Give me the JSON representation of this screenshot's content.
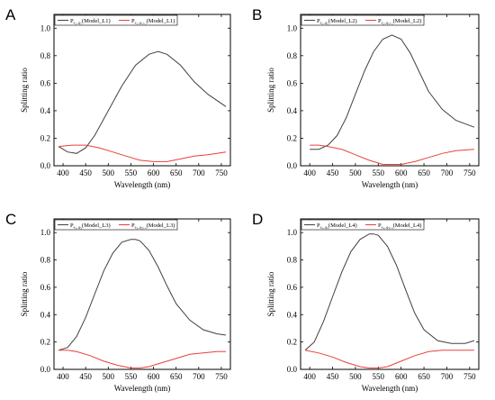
{
  "chart_data": [
    {
      "type": "line",
      "panel": "A",
      "xlabel": "Wavelength (nm)",
      "ylabel": "Splitting ratio",
      "xlim": [
        380,
        770
      ],
      "ylim": [
        0,
        1.1
      ],
      "xticks": [
        400,
        450,
        500,
        550,
        600,
        650,
        700,
        750
      ],
      "yticks": [
        0.0,
        0.2,
        0.4,
        0.6,
        0.8,
        1.0
      ],
      "legend_position": "top",
      "series": [
        {
          "name_main": "P",
          "name_sub": "e₁_φ₁",
          "name_model": "(Model_L1)",
          "color": "#404040",
          "x": [
            390,
            410,
            430,
            450,
            470,
            500,
            530,
            560,
            590,
            610,
            630,
            660,
            690,
            720,
            760
          ],
          "y": [
            0.14,
            0.1,
            0.09,
            0.13,
            0.22,
            0.4,
            0.58,
            0.73,
            0.81,
            0.83,
            0.81,
            0.73,
            0.61,
            0.52,
            0.43
          ]
        },
        {
          "name_main": "P",
          "name_sub": "e₁_φ₁₊₂",
          "name_model": "(Model_L1)",
          "color": "#e8403a",
          "x": [
            390,
            420,
            450,
            480,
            510,
            540,
            570,
            600,
            630,
            660,
            690,
            720,
            760
          ],
          "y": [
            0.14,
            0.15,
            0.15,
            0.13,
            0.1,
            0.07,
            0.04,
            0.03,
            0.03,
            0.05,
            0.07,
            0.08,
            0.1
          ]
        }
      ]
    },
    {
      "type": "line",
      "panel": "B",
      "xlabel": "Wavelength (nm)",
      "ylabel": "Splitting ratio",
      "xlim": [
        380,
        770
      ],
      "ylim": [
        0,
        1.1
      ],
      "xticks": [
        400,
        450,
        500,
        550,
        600,
        650,
        700,
        750
      ],
      "yticks": [
        0.0,
        0.2,
        0.4,
        0.6,
        0.8,
        1.0
      ],
      "legend_position": "top",
      "series": [
        {
          "name_main": "P",
          "name_sub": "e₂_φ₂",
          "name_model": "(Model_L2)",
          "color": "#404040",
          "x": [
            400,
            420,
            440,
            460,
            480,
            500,
            520,
            540,
            560,
            580,
            600,
            620,
            640,
            660,
            690,
            720,
            760
          ],
          "y": [
            0.12,
            0.12,
            0.15,
            0.22,
            0.35,
            0.52,
            0.69,
            0.83,
            0.92,
            0.95,
            0.92,
            0.82,
            0.68,
            0.54,
            0.41,
            0.33,
            0.28
          ]
        },
        {
          "name_main": "P",
          "name_sub": "e₂_φ₁₊₂",
          "name_model": "(Model_L2)",
          "color": "#e8403a",
          "x": [
            400,
            420,
            440,
            470,
            500,
            530,
            560,
            580,
            600,
            630,
            660,
            690,
            720,
            760
          ],
          "y": [
            0.15,
            0.15,
            0.14,
            0.12,
            0.08,
            0.04,
            0.01,
            0.01,
            0.01,
            0.03,
            0.06,
            0.09,
            0.11,
            0.12
          ]
        }
      ]
    },
    {
      "type": "line",
      "panel": "C",
      "xlabel": "Wavelength (nm)",
      "ylabel": "Splitting ratio",
      "xlim": [
        380,
        770
      ],
      "ylim": [
        0,
        1.1
      ],
      "xticks": [
        400,
        450,
        500,
        550,
        600,
        650,
        700,
        750
      ],
      "yticks": [
        0.0,
        0.2,
        0.4,
        0.6,
        0.8,
        1.0
      ],
      "legend_position": "top",
      "series": [
        {
          "name_main": "P",
          "name_sub": "e₃_φ₃",
          "name_model": "(Model_L3)",
          "color": "#404040",
          "x": [
            390,
            410,
            430,
            450,
            470,
            490,
            510,
            530,
            550,
            560,
            570,
            590,
            610,
            630,
            650,
            680,
            710,
            740,
            760
          ],
          "y": [
            0.14,
            0.16,
            0.24,
            0.38,
            0.55,
            0.72,
            0.85,
            0.93,
            0.95,
            0.95,
            0.94,
            0.87,
            0.75,
            0.61,
            0.48,
            0.36,
            0.29,
            0.26,
            0.25
          ]
        },
        {
          "name_main": "P",
          "name_sub": "e₃_φ₃₊₄",
          "name_model": "(Model_L3)",
          "color": "#e8403a",
          "x": [
            390,
            410,
            430,
            460,
            490,
            520,
            550,
            570,
            590,
            620,
            650,
            680,
            710,
            740,
            760
          ],
          "y": [
            0.14,
            0.14,
            0.13,
            0.1,
            0.06,
            0.03,
            0.01,
            0.01,
            0.02,
            0.05,
            0.08,
            0.11,
            0.12,
            0.13,
            0.13
          ]
        }
      ]
    },
    {
      "type": "line",
      "panel": "D",
      "xlabel": "Wavelength (nm)",
      "ylabel": "Splitting ratio",
      "xlim": [
        380,
        770
      ],
      "ylim": [
        0,
        1.1
      ],
      "xticks": [
        400,
        450,
        500,
        550,
        600,
        650,
        700,
        750
      ],
      "yticks": [
        0.0,
        0.2,
        0.4,
        0.6,
        0.8,
        1.0
      ],
      "legend_position": "top",
      "series": [
        {
          "name_main": "P",
          "name_sub": "e₄_φ₄",
          "name_model": "(Model_L4)",
          "color": "#404040",
          "x": [
            390,
            410,
            430,
            450,
            470,
            490,
            510,
            530,
            540,
            550,
            570,
            590,
            610,
            630,
            650,
            680,
            710,
            740,
            760
          ],
          "y": [
            0.14,
            0.2,
            0.35,
            0.53,
            0.71,
            0.86,
            0.95,
            0.99,
            0.99,
            0.98,
            0.9,
            0.76,
            0.58,
            0.41,
            0.29,
            0.21,
            0.19,
            0.19,
            0.21
          ]
        },
        {
          "name_main": "P",
          "name_sub": "e₄_φ₃₊₄",
          "name_model": "(Model_L4)",
          "color": "#e8403a",
          "x": [
            390,
            420,
            450,
            480,
            510,
            530,
            550,
            570,
            600,
            630,
            660,
            690,
            720,
            760
          ],
          "y": [
            0.14,
            0.12,
            0.09,
            0.05,
            0.02,
            0.01,
            0.01,
            0.02,
            0.06,
            0.1,
            0.13,
            0.14,
            0.14,
            0.14
          ]
        }
      ]
    }
  ]
}
